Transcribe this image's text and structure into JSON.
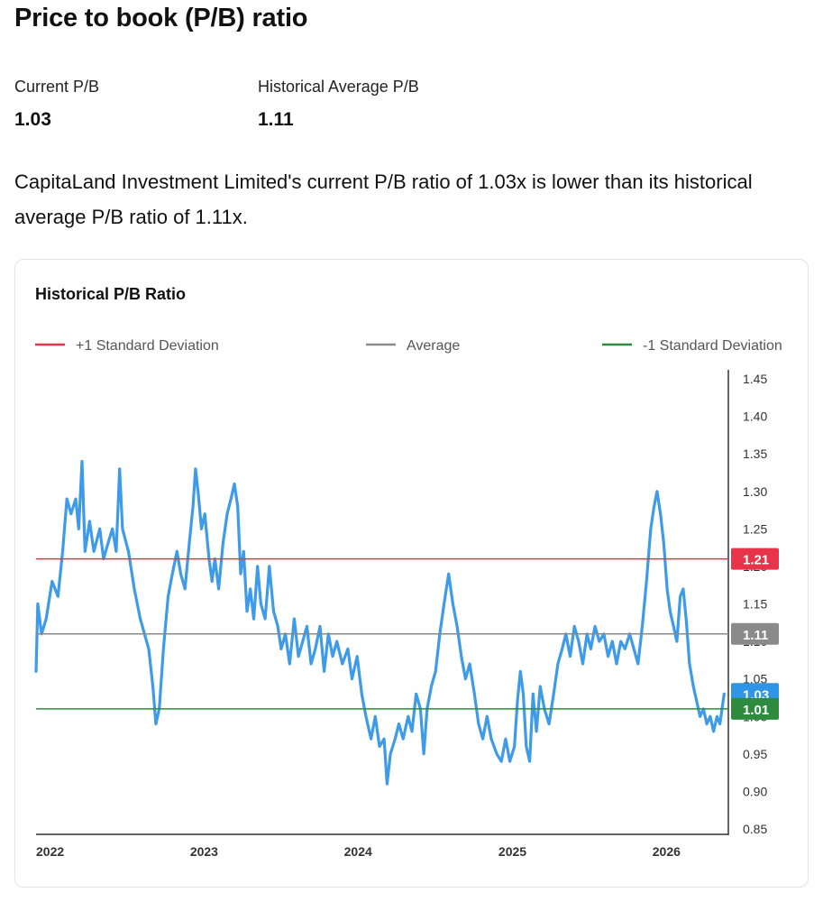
{
  "header": {
    "title": "Price to book (P/B) ratio"
  },
  "stats": {
    "current": {
      "label": "Current P/B",
      "value": "1.03"
    },
    "historical": {
      "label": "Historical Average P/B",
      "value": "1.11"
    }
  },
  "summary": "CapitaLand Investment Limited's current P/B ratio of 1.03x is lower than its historical average P/B ratio of 1.11x.",
  "chart_card": {
    "title": "Historical P/B Ratio",
    "legend": [
      {
        "label": "+1 Standard Deviation",
        "color": "#e8334a"
      },
      {
        "label": "Average",
        "color": "#8a8a8a"
      },
      {
        "label": "-1 Standard Deviation",
        "color": "#2e8b3e"
      }
    ]
  },
  "colors": {
    "series": "#3d9be9",
    "plus_sd": "#e8334a",
    "average": "#8a8a8a",
    "minus_sd": "#2e8b3e",
    "current_badge": "#2f95e6"
  },
  "chart_data": {
    "type": "line",
    "title": "Historical P/B Ratio",
    "xlabel": "",
    "ylabel": "",
    "xlim": [
      "2022-01-01",
      "2026-06-30"
    ],
    "ylim": [
      0.85,
      1.45
    ],
    "y_ticks": [
      "0.85",
      "0.90",
      "0.95",
      "1.00",
      "1.05",
      "1.10",
      "1.15",
      "1.20",
      "1.25",
      "1.30",
      "1.35",
      "1.40",
      "1.45"
    ],
    "x_ticks": [
      {
        "label": "2022",
        "date": "2022-01-01"
      },
      {
        "label": "2023",
        "date": "2023-01-01"
      },
      {
        "label": "2024",
        "date": "2024-01-01"
      },
      {
        "label": "2025",
        "date": "2025-01-01"
      },
      {
        "label": "2026",
        "date": "2026-01-01"
      }
    ],
    "reference_lines": [
      {
        "name": "+1 Standard Deviation",
        "value": 1.21,
        "label": "1.21",
        "color": "#e8334a"
      },
      {
        "name": "Average",
        "value": 1.11,
        "label": "1.11",
        "color": "#8a8a8a"
      },
      {
        "name": "-1 Standard Deviation",
        "value": 1.01,
        "label": "1.01",
        "color": "#2e8b3e"
      }
    ],
    "current_value": {
      "value": 1.03,
      "label": "1.03"
    },
    "grid": false,
    "legend_position": "top",
    "series": [
      {
        "points": [
          [
            "2022-01-01",
            1.06
          ],
          [
            "2022-01-05",
            1.15
          ],
          [
            "2022-01-14",
            1.11
          ],
          [
            "2022-01-25",
            1.13
          ],
          [
            "2022-02-08",
            1.18
          ],
          [
            "2022-02-22",
            1.16
          ],
          [
            "2022-03-05",
            1.22
          ],
          [
            "2022-03-15",
            1.29
          ],
          [
            "2022-03-25",
            1.27
          ],
          [
            "2022-04-05",
            1.29
          ],
          [
            "2022-04-12",
            1.25
          ],
          [
            "2022-04-20",
            1.34
          ],
          [
            "2022-04-27",
            1.22
          ],
          [
            "2022-05-08",
            1.26
          ],
          [
            "2022-05-18",
            1.22
          ],
          [
            "2022-06-01",
            1.25
          ],
          [
            "2022-06-10",
            1.21
          ],
          [
            "2022-06-20",
            1.23
          ],
          [
            "2022-07-01",
            1.25
          ],
          [
            "2022-07-10",
            1.22
          ],
          [
            "2022-07-18",
            1.33
          ],
          [
            "2022-07-25",
            1.25
          ],
          [
            "2022-08-08",
            1.22
          ],
          [
            "2022-08-22",
            1.17
          ],
          [
            "2022-09-05",
            1.13
          ],
          [
            "2022-09-15",
            1.11
          ],
          [
            "2022-09-25",
            1.09
          ],
          [
            "2022-10-05",
            1.04
          ],
          [
            "2022-10-12",
            0.99
          ],
          [
            "2022-10-20",
            1.01
          ],
          [
            "2022-10-30",
            1.09
          ],
          [
            "2022-11-10",
            1.16
          ],
          [
            "2022-11-20",
            1.19
          ],
          [
            "2022-12-01",
            1.22
          ],
          [
            "2022-12-10",
            1.19
          ],
          [
            "2022-12-20",
            1.17
          ],
          [
            "2022-12-30",
            1.23
          ],
          [
            "2023-01-08",
            1.28
          ],
          [
            "2023-01-14",
            1.33
          ],
          [
            "2023-01-20",
            1.3
          ],
          [
            "2023-01-28",
            1.25
          ],
          [
            "2023-02-05",
            1.27
          ],
          [
            "2023-02-15",
            1.21
          ],
          [
            "2023-02-22",
            1.18
          ],
          [
            "2023-03-01",
            1.21
          ],
          [
            "2023-03-10",
            1.17
          ],
          [
            "2023-03-20",
            1.23
          ],
          [
            "2023-03-30",
            1.27
          ],
          [
            "2023-04-08",
            1.29
          ],
          [
            "2023-04-16",
            1.31
          ],
          [
            "2023-04-24",
            1.28
          ],
          [
            "2023-05-01",
            1.19
          ],
          [
            "2023-05-08",
            1.22
          ],
          [
            "2023-05-16",
            1.14
          ],
          [
            "2023-05-24",
            1.17
          ],
          [
            "2023-06-01",
            1.13
          ],
          [
            "2023-06-10",
            1.2
          ],
          [
            "2023-06-18",
            1.15
          ],
          [
            "2023-06-28",
            1.13
          ],
          [
            "2023-07-08",
            1.2
          ],
          [
            "2023-07-18",
            1.14
          ],
          [
            "2023-07-28",
            1.12
          ],
          [
            "2023-08-05",
            1.09
          ],
          [
            "2023-08-15",
            1.11
          ],
          [
            "2023-08-25",
            1.07
          ],
          [
            "2023-09-05",
            1.13
          ],
          [
            "2023-09-15",
            1.08
          ],
          [
            "2023-09-25",
            1.1
          ],
          [
            "2023-10-05",
            1.12
          ],
          [
            "2023-10-15",
            1.07
          ],
          [
            "2023-10-25",
            1.09
          ],
          [
            "2023-11-05",
            1.12
          ],
          [
            "2023-11-15",
            1.06
          ],
          [
            "2023-11-25",
            1.11
          ],
          [
            "2023-12-05",
            1.08
          ],
          [
            "2023-12-15",
            1.1
          ],
          [
            "2023-12-28",
            1.07
          ],
          [
            "2024-01-10",
            1.09
          ],
          [
            "2024-01-20",
            1.05
          ],
          [
            "2024-02-01",
            1.08
          ],
          [
            "2024-02-12",
            1.03
          ],
          [
            "2024-02-22",
            1.0
          ],
          [
            "2024-03-05",
            0.97
          ],
          [
            "2024-03-15",
            1.0
          ],
          [
            "2024-03-25",
            0.96
          ],
          [
            "2024-04-05",
            0.97
          ],
          [
            "2024-04-12",
            0.91
          ],
          [
            "2024-04-20",
            0.95
          ],
          [
            "2024-05-01",
            0.97
          ],
          [
            "2024-05-10",
            0.99
          ],
          [
            "2024-05-20",
            0.97
          ],
          [
            "2024-06-01",
            1.0
          ],
          [
            "2024-06-10",
            0.98
          ],
          [
            "2024-06-20",
            1.03
          ],
          [
            "2024-06-30",
            1.01
          ],
          [
            "2024-07-08",
            0.95
          ],
          [
            "2024-07-16",
            1.01
          ],
          [
            "2024-07-26",
            1.04
          ],
          [
            "2024-08-05",
            1.06
          ],
          [
            "2024-08-15",
            1.11
          ],
          [
            "2024-08-25",
            1.15
          ],
          [
            "2024-09-05",
            1.19
          ],
          [
            "2024-09-15",
            1.15
          ],
          [
            "2024-09-25",
            1.12
          ],
          [
            "2024-10-05",
            1.08
          ],
          [
            "2024-10-15",
            1.05
          ],
          [
            "2024-10-25",
            1.07
          ],
          [
            "2024-11-05",
            1.03
          ],
          [
            "2024-11-15",
            0.99
          ],
          [
            "2024-11-25",
            0.97
          ],
          [
            "2024-12-05",
            1.0
          ],
          [
            "2024-12-15",
            0.97
          ],
          [
            "2024-12-28",
            0.95
          ],
          [
            "2025-01-08",
            0.94
          ],
          [
            "2025-01-18",
            0.97
          ],
          [
            "2025-01-28",
            0.94
          ],
          [
            "2025-02-08",
            0.96
          ],
          [
            "2025-02-15",
            1.02
          ],
          [
            "2025-02-22",
            1.06
          ],
          [
            "2025-03-01",
            1.03
          ],
          [
            "2025-03-08",
            0.96
          ],
          [
            "2025-03-16",
            0.94
          ],
          [
            "2025-03-24",
            1.03
          ],
          [
            "2025-04-01",
            0.98
          ],
          [
            "2025-04-10",
            1.04
          ],
          [
            "2025-04-20",
            1.01
          ],
          [
            "2025-05-01",
            0.99
          ],
          [
            "2025-05-12",
            1.03
          ],
          [
            "2025-05-22",
            1.07
          ],
          [
            "2025-06-01",
            1.09
          ],
          [
            "2025-06-10",
            1.11
          ],
          [
            "2025-06-20",
            1.08
          ],
          [
            "2025-06-30",
            1.12
          ],
          [
            "2025-07-10",
            1.1
          ],
          [
            "2025-07-20",
            1.07
          ],
          [
            "2025-07-30",
            1.11
          ],
          [
            "2025-08-08",
            1.09
          ],
          [
            "2025-08-18",
            1.12
          ],
          [
            "2025-08-28",
            1.1
          ],
          [
            "2025-09-08",
            1.11
          ],
          [
            "2025-09-18",
            1.08
          ],
          [
            "2025-09-28",
            1.1
          ],
          [
            "2025-10-08",
            1.07
          ],
          [
            "2025-10-18",
            1.1
          ],
          [
            "2025-10-28",
            1.09
          ],
          [
            "2025-11-08",
            1.11
          ],
          [
            "2025-11-18",
            1.09
          ],
          [
            "2025-11-28",
            1.07
          ],
          [
            "2025-12-08",
            1.12
          ],
          [
            "2025-12-18",
            1.18
          ],
          [
            "2025-12-28",
            1.25
          ],
          [
            "2026-01-05",
            1.28
          ],
          [
            "2026-01-12",
            1.3
          ],
          [
            "2026-01-20",
            1.27
          ],
          [
            "2026-01-28",
            1.23
          ],
          [
            "2026-02-05",
            1.17
          ],
          [
            "2026-02-12",
            1.14
          ],
          [
            "2026-02-20",
            1.12
          ],
          [
            "2026-02-28",
            1.1
          ],
          [
            "2026-03-08",
            1.16
          ],
          [
            "2026-03-15",
            1.17
          ],
          [
            "2026-03-22",
            1.13
          ],
          [
            "2026-03-30",
            1.07
          ],
          [
            "2026-04-08",
            1.04
          ],
          [
            "2026-04-16",
            1.02
          ],
          [
            "2026-04-24",
            1.0
          ],
          [
            "2026-05-02",
            1.01
          ],
          [
            "2026-05-10",
            0.99
          ],
          [
            "2026-05-18",
            1.0
          ],
          [
            "2026-05-26",
            0.98
          ],
          [
            "2026-06-03",
            1.0
          ],
          [
            "2026-06-10",
            0.99
          ],
          [
            "2026-06-20",
            1.03
          ]
        ]
      }
    ]
  }
}
